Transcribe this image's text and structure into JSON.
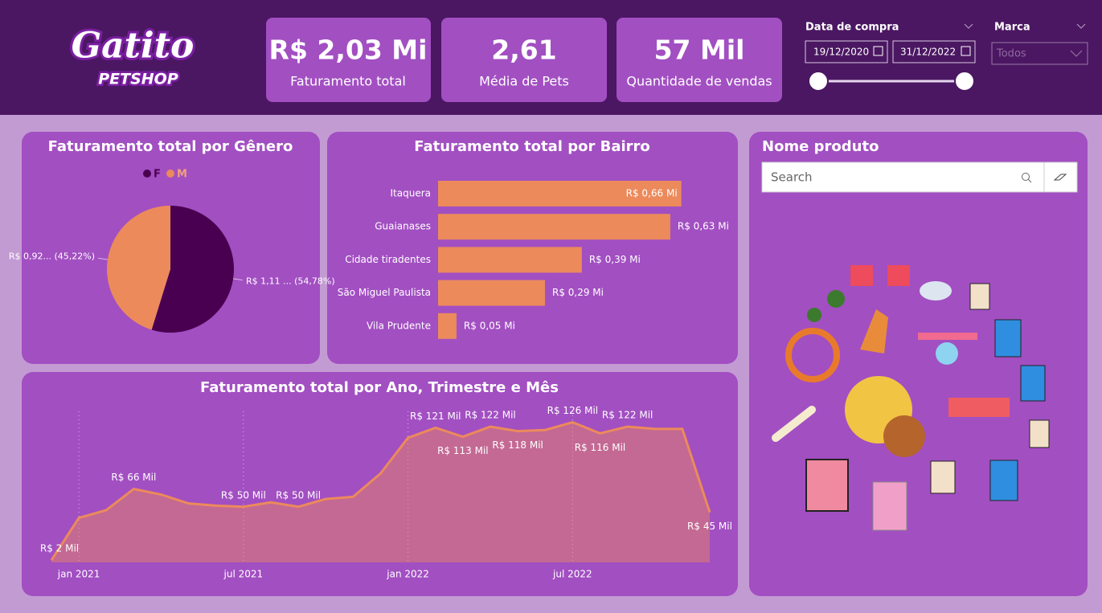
{
  "logo": {
    "name": "Gatito",
    "tagline": "PETSHOP"
  },
  "kpis": [
    {
      "value": "R$ 2,03 Mi",
      "label": "Faturamento total"
    },
    {
      "value": "2,61",
      "label": "Média de Pets"
    },
    {
      "value": "57 Mil",
      "label": "Quantidade de vendas"
    }
  ],
  "filters": {
    "date": {
      "label": "Data de compra",
      "start": "19/12/2020",
      "end": "31/12/2022"
    },
    "brand": {
      "label": "Marca",
      "placeholder": "Todos"
    }
  },
  "product_panel": {
    "title": "Nome produto",
    "search_placeholder": "Search"
  },
  "chart_data": [
    {
      "type": "pie",
      "title": "Faturamento total por Gênero",
      "categories": [
        "F",
        "M"
      ],
      "values": [
        54.78,
        45.22
      ],
      "value_labels": [
        "R$ 1,11 ... (54,78%)",
        "R$ 0,92... (45,22%)"
      ],
      "colors": [
        "#4a0050",
        "#ec8a5c"
      ],
      "legend": "top"
    },
    {
      "type": "hbar",
      "title": "Faturamento total por Bairro",
      "categories": [
        "Itaquera",
        "Guaianases",
        "Cidade tiradentes",
        "São Miguel Paulista",
        "Vila Prudente"
      ],
      "values": [
        0.66,
        0.63,
        0.39,
        0.29,
        0.05
      ],
      "value_labels": [
        "R$ 0,66 Mi",
        "R$ 0,63 Mi",
        "R$ 0,39 Mi",
        "R$ 0,29 Mi",
        "R$ 0,05 Mi"
      ],
      "color": "#ec8a5c",
      "xlim": [
        0,
        0.7
      ]
    },
    {
      "type": "area",
      "title": "Faturamento total por Ano, Trimestre e Mês",
      "categories": [
        null,
        "jan 2021",
        null,
        null,
        null,
        null,
        null,
        "jul 2021",
        null,
        null,
        null,
        null,
        null,
        "jan 2022",
        null,
        null,
        null,
        null,
        null,
        "jul 2022",
        null,
        null,
        null,
        null,
        null
      ],
      "values": [
        2,
        40,
        47,
        66,
        61,
        53,
        51,
        50,
        54,
        50,
        57,
        59,
        80,
        112,
        121,
        113,
        122,
        118,
        119,
        126,
        116,
        122,
        120,
        120,
        45
      ],
      "value_labels": [
        "R$ 2 Mil",
        null,
        null,
        "R$ 66 Mil",
        null,
        null,
        null,
        "R$ 50 Mil",
        null,
        "R$ 50 Mil",
        null,
        null,
        null,
        null,
        "R$ 121 Mil",
        "R$ 113 Mil",
        "R$ 122 Mil",
        "R$ 118 Mil",
        null,
        "R$ 126 Mil",
        "R$ 116 Mil",
        "R$ 122 Mil",
        null,
        null,
        "R$ 45 Mil"
      ],
      "color": "#ec8a5c",
      "ylim": [
        0,
        130
      ],
      "grid": "x-dotted"
    }
  ]
}
